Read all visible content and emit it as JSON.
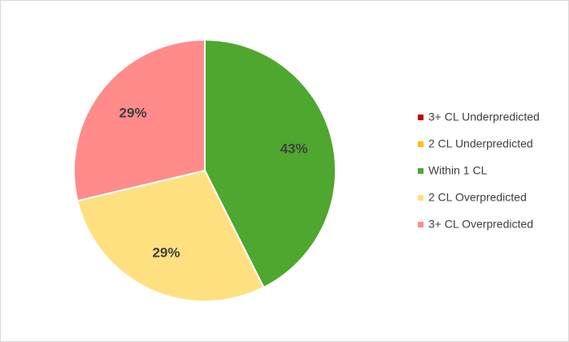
{
  "chart_data": {
    "type": "pie",
    "categories": [
      "3+ CL Underpredicted",
      "2 CL Underpredicted",
      "Within 1 CL",
      "2 CL Overpredicted",
      "3+ CL Overpredicted"
    ],
    "values": [
      0,
      0,
      43,
      29,
      29
    ],
    "value_labels": [
      null,
      null,
      "43%",
      "29%",
      "29%"
    ],
    "colors": [
      "#c00000",
      "#ffc000",
      "#4ea72e",
      "#ffe080",
      "#ff8b8b"
    ],
    "legend": "right"
  }
}
